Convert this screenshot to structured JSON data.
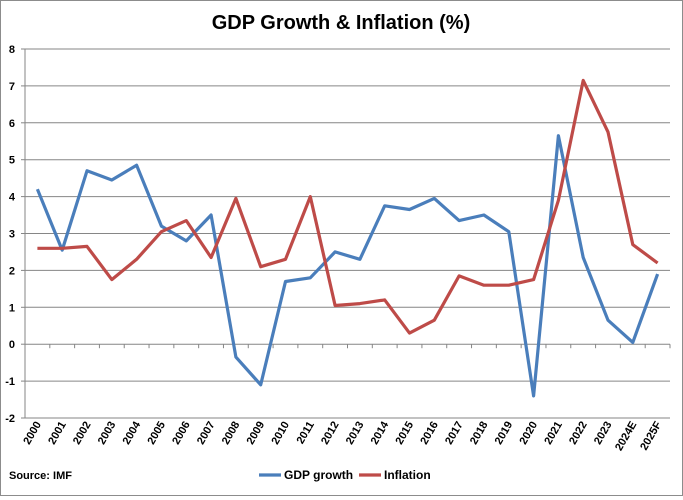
{
  "chart_data": {
    "type": "line",
    "title": "GDP Growth & Inflation (%)",
    "source": "Source: IMF",
    "categories": [
      "2000",
      "2001",
      "2002",
      "2003",
      "2004",
      "2005",
      "2006",
      "2007",
      "2008",
      "2009",
      "2010",
      "2011",
      "2012",
      "2013",
      "2014",
      "2015",
      "2016",
      "2017",
      "2018",
      "2019",
      "2020",
      "2021",
      "2022",
      "2023",
      "2024E",
      "2025F"
    ],
    "ylim": [
      -2,
      8
    ],
    "yticks": [
      -2,
      -1,
      0,
      1,
      2,
      3,
      4,
      5,
      6,
      7,
      8
    ],
    "grid": true,
    "legend": "bottom",
    "series": [
      {
        "name": "GDP growth",
        "color": "#4a7ebb",
        "values": [
          4.2,
          2.55,
          4.7,
          4.45,
          4.85,
          3.2,
          2.8,
          3.5,
          -0.35,
          -1.1,
          1.7,
          1.8,
          2.5,
          2.3,
          3.75,
          3.65,
          3.95,
          3.35,
          3.5,
          3.05,
          -1.4,
          5.65,
          2.35,
          0.65,
          0.05,
          1.9
        ]
      },
      {
        "name": "Inflation",
        "color": "#be4b48",
        "values": [
          2.6,
          2.6,
          2.65,
          1.75,
          2.3,
          3.05,
          3.35,
          2.35,
          3.95,
          2.1,
          2.3,
          4.0,
          1.05,
          1.1,
          1.2,
          0.3,
          0.65,
          1.85,
          1.6,
          1.6,
          1.75,
          3.9,
          7.15,
          5.75,
          2.7,
          2.2
        ]
      }
    ]
  }
}
